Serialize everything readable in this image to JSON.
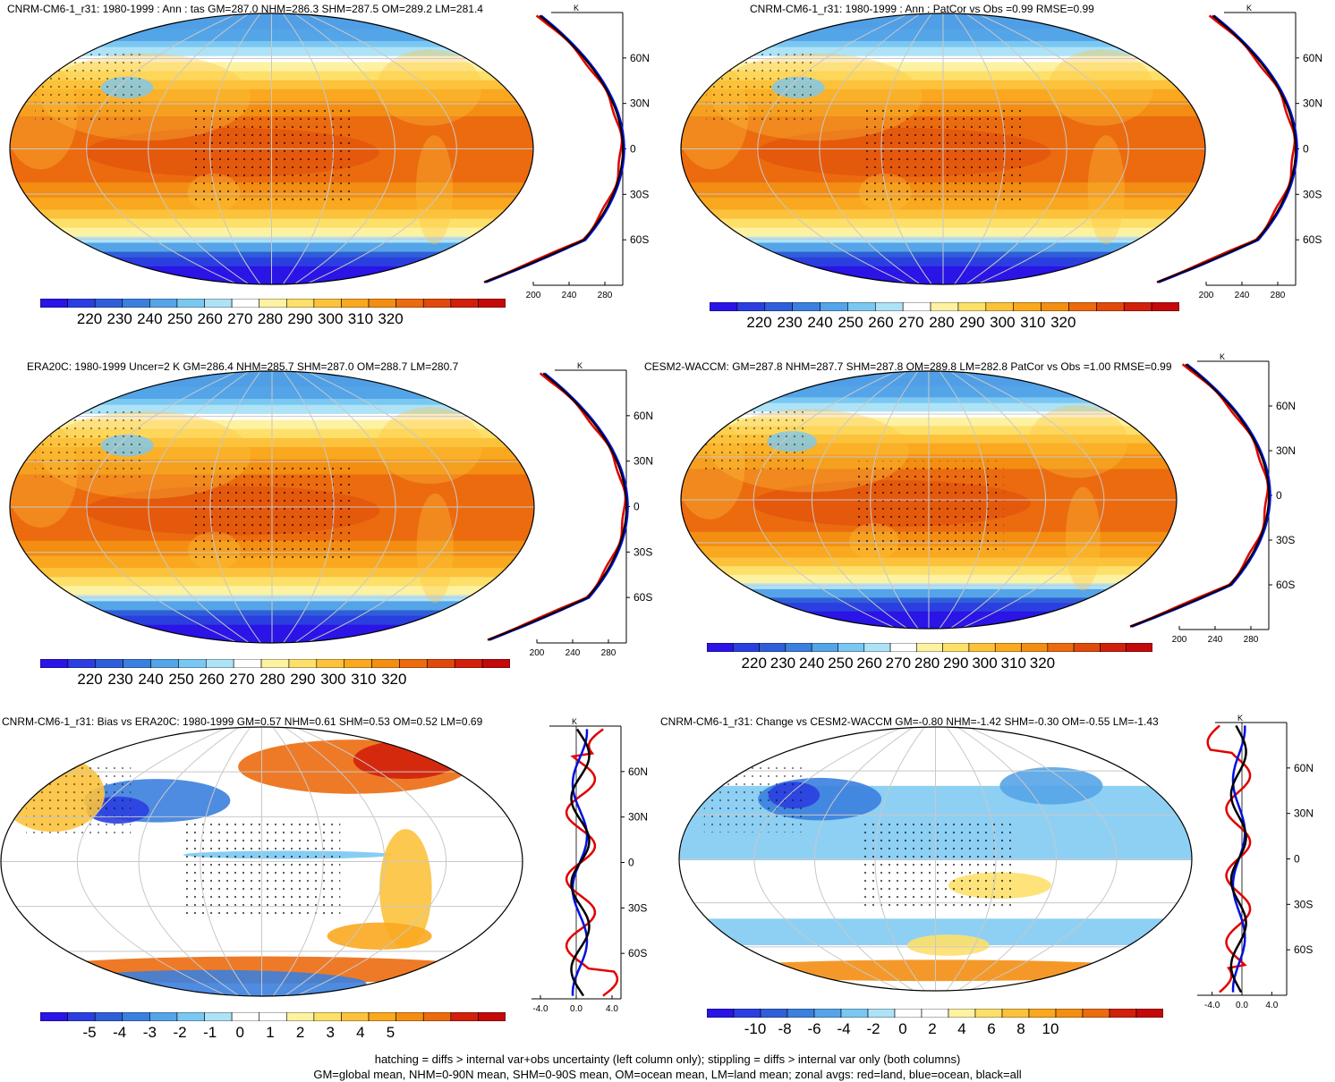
{
  "panels": [
    {
      "title": "CNRM-CM6-1_r31: 1980-1999 : Ann : tas GM=287.0 NHM=286.3 SHM=287.5 OM=289.2 LM=281.4",
      "kind": "abs",
      "cbar": {
        "ticks": [
          "220",
          "230",
          "240",
          "250",
          "260",
          "270",
          "280",
          "290",
          "300",
          "310",
          "320"
        ]
      },
      "profile": {
        "unit": "K",
        "x_ticks": [
          "200",
          "240",
          "280"
        ],
        "x_range": [
          200,
          300
        ],
        "lat_ticks": [
          "60N",
          "30N",
          "0",
          "30S",
          "60S"
        ]
      }
    },
    {
      "title": "CNRM-CM6-1_r31: 1980-1999 : Ann : PatCor vs Obs =0.99 RMSE=0.99",
      "kind": "abs",
      "cbar": {
        "ticks": [
          "220",
          "230",
          "240",
          "250",
          "260",
          "270",
          "280",
          "290",
          "300",
          "310",
          "320"
        ]
      },
      "profile": {
        "unit": "K",
        "x_ticks": [
          "200",
          "240",
          "280"
        ],
        "x_range": [
          200,
          300
        ],
        "lat_ticks": [
          "60N",
          "30N",
          "0",
          "30S",
          "60S"
        ]
      }
    },
    {
      "title": "ERA20C: 1980-1999 Uncer=2 K GM=286.4 NHM=285.7 SHM=287.0 OM=288.7 LM=280.7",
      "kind": "abs",
      "cbar": {
        "ticks": [
          "220",
          "230",
          "240",
          "250",
          "260",
          "270",
          "280",
          "290",
          "300",
          "310",
          "320"
        ]
      },
      "profile": {
        "unit": "K",
        "x_ticks": [
          "200",
          "240",
          "280"
        ],
        "x_range": [
          200,
          300
        ],
        "lat_ticks": [
          "60N",
          "30N",
          "0",
          "30S",
          "60S"
        ]
      }
    },
    {
      "title": "CESM2-WACCM: GM=287.8 NHM=287.7 SHM=287.8 OM=289.8 LM=282.8 PatCor vs Obs =1.00 RMSE=0.99",
      "kind": "abs",
      "cbar": {
        "ticks": [
          "220",
          "230",
          "240",
          "250",
          "260",
          "270",
          "280",
          "290",
          "300",
          "310",
          "320"
        ]
      },
      "profile": {
        "unit": "K",
        "x_ticks": [
          "200",
          "240",
          "280"
        ],
        "x_range": [
          200,
          300
        ],
        "lat_ticks": [
          "60N",
          "30N",
          "0",
          "30S",
          "60S"
        ]
      }
    },
    {
      "title": "CNRM-CM6-1_r31: Bias vs ERA20C: 1980-1999 GM=0.57 NHM=0.61 SHM=0.53 OM=0.52 LM=0.69",
      "kind": "bias",
      "cbar": {
        "ticks": [
          "-5",
          "-4",
          "-3",
          "-2",
          "-1",
          "0",
          "1",
          "2",
          "3",
          "4",
          "5"
        ]
      },
      "profile": {
        "unit": "K",
        "x_ticks": [
          "-4.0",
          "0.0",
          "4.0"
        ],
        "x_range": [
          -5,
          5
        ],
        "lat_ticks": [
          "60N",
          "30N",
          "0",
          "30S",
          "60S"
        ]
      }
    },
    {
      "title": "CNRM-CM6-1_r31: Change vs CESM2-WACCM GM=-0.80 NHM=-1.42 SHM=-0.30 OM=-0.55 LM=-1.43",
      "kind": "change",
      "cbar": {
        "ticks": [
          "-10",
          "-8",
          "-6",
          "-4",
          "-2",
          "0",
          "2",
          "4",
          "6",
          "8",
          "10"
        ]
      },
      "profile": {
        "unit": "K",
        "x_ticks": [
          "-4.0",
          "0.0",
          "4.0"
        ],
        "x_range": [
          -6,
          6
        ],
        "lat_ticks": [
          "60N",
          "30N",
          "0",
          "30S",
          "60S"
        ]
      }
    }
  ],
  "footer": {
    "line1": "hatching = diffs > internal var+obs uncertainty (left column only); stippling = diffs > internal var only (both columns)",
    "line2": "GM=global mean, NHM=0-90N mean, SHM=0-90S mean, OM=ocean mean, LM=land mean; zonal avgs: red=land, blue=ocean, black=all"
  },
  "colors": {
    "abs_palette": [
      "#2a14e6",
      "#2b3fe0",
      "#2f5fd8",
      "#3b80de",
      "#55a4e8",
      "#7ac8f2",
      "#aee2f7",
      "#ffffff",
      "#fdf2a2",
      "#fde06a",
      "#fcc23c",
      "#f9a81f",
      "#f38e12",
      "#ec6b0f",
      "#e04a0d",
      "#d1200c",
      "#c3090a"
    ],
    "div_palette": [
      "#2a14e6",
      "#2b3fe0",
      "#2f5fd8",
      "#3b80de",
      "#55a4e8",
      "#7ac8f2",
      "#aee2f7",
      "#ffffff",
      "#ffffff",
      "#fdf2a2",
      "#fde06a",
      "#fcc23c",
      "#f9a81f",
      "#f38e12",
      "#ec6b0f",
      "#d1200c",
      "#c3090a"
    ],
    "land": "#e00000",
    "ocean": "#0010e0",
    "all": "#000000"
  }
}
